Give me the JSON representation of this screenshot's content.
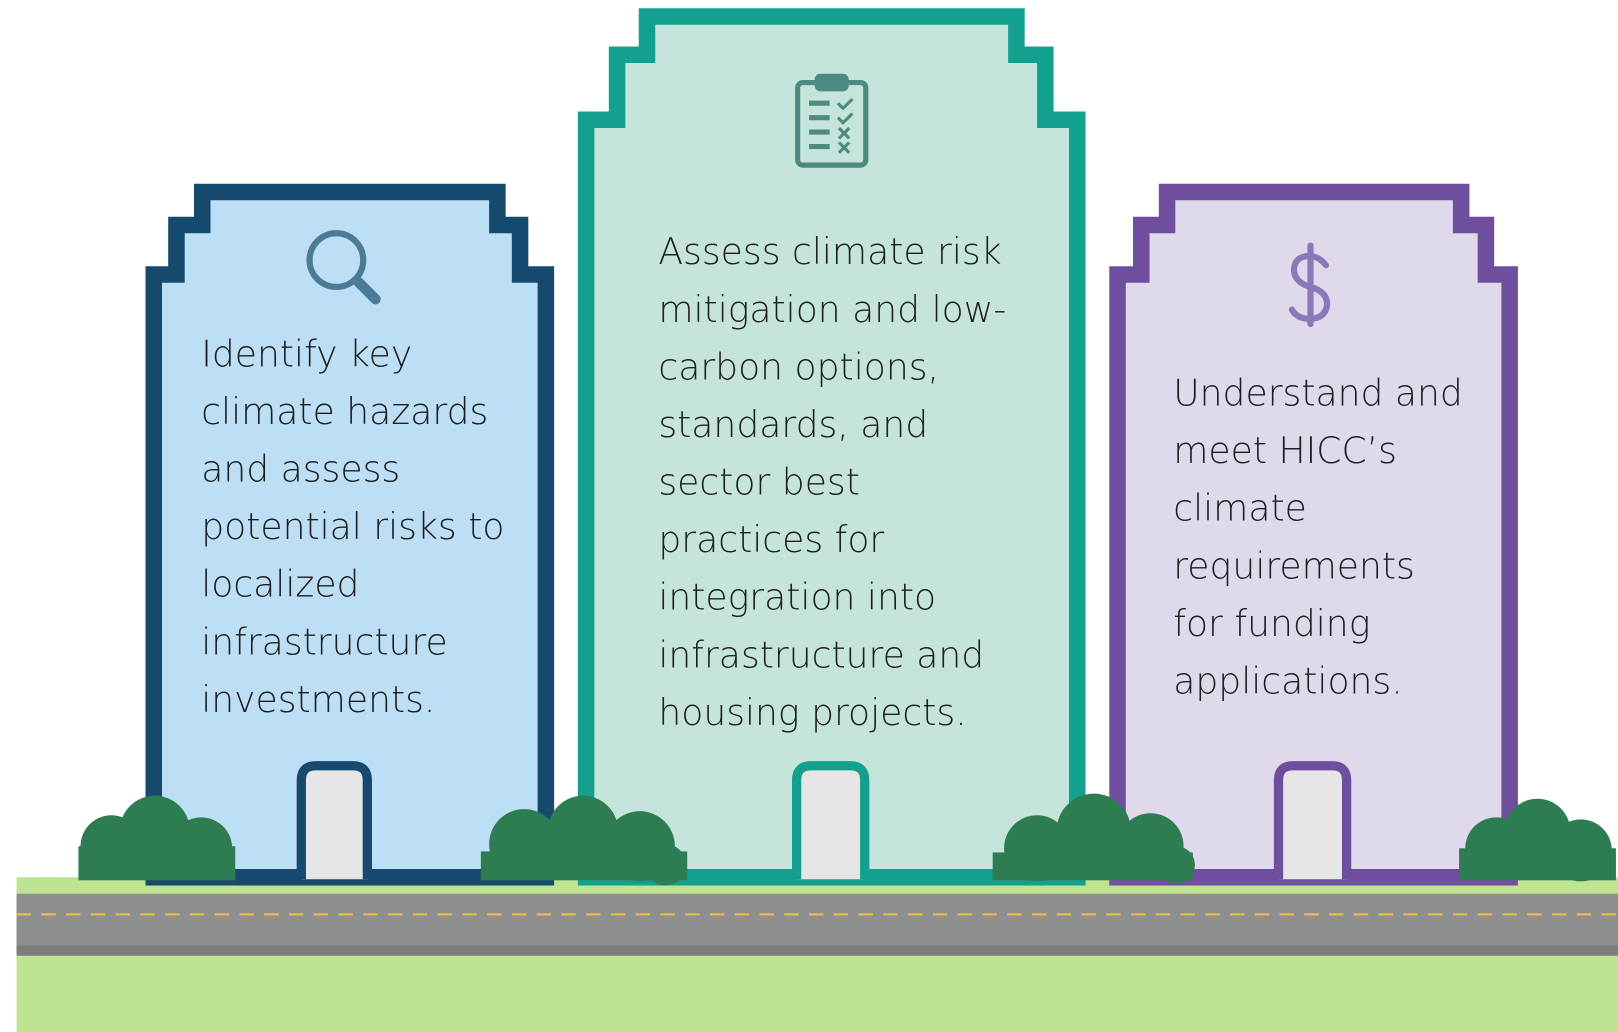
{
  "buildings": [
    {
      "lines": [
        "Identify key",
        "climate hazards",
        "and assess",
        "potential risks to",
        "localized",
        "infrastructure",
        "investments."
      ]
    },
    {
      "lines": [
        "Assess climate risk",
        "mitigation and low-",
        "carbon options,",
        "standards, and",
        "sector best",
        "practices for",
        "integration into",
        "infrastructure and",
        "housing projects."
      ]
    },
    {
      "lines": [
        "Understand and",
        "meet HICC’s",
        "climate",
        "requirements",
        "for funding",
        "applications."
      ]
    }
  ]
}
